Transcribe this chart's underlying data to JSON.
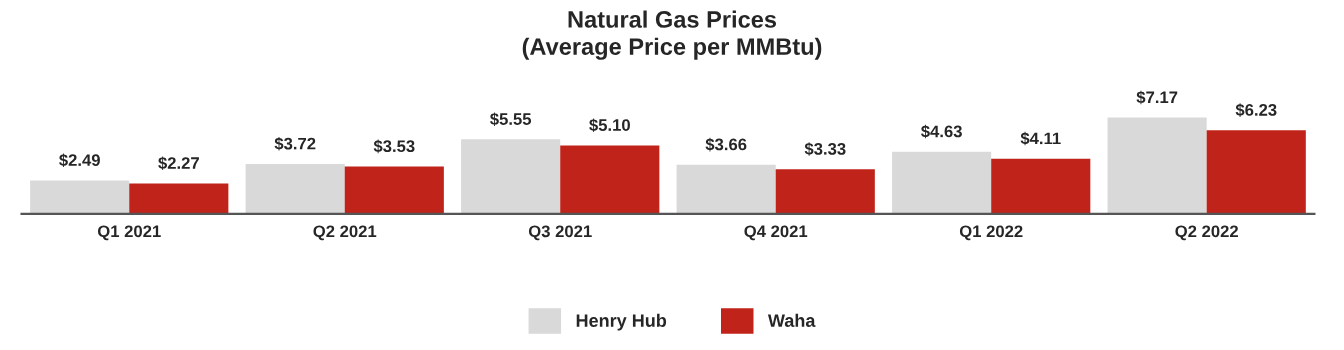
{
  "chart_data": {
    "type": "bar",
    "title": "Natural Gas Prices\n(Average Price per MMBtu)",
    "categories": [
      "Q1 2021",
      "Q2 2021",
      "Q3 2021",
      "Q4 2021",
      "Q1 2022",
      "Q2 2022"
    ],
    "series": [
      {
        "name": "Henry Hub",
        "color": "#d9d9d9",
        "values": [
          2.49,
          3.72,
          5.55,
          3.66,
          4.63,
          7.17
        ],
        "value_labels": [
          "$2.49",
          "$3.72",
          "$5.55",
          "$3.66",
          "$4.63",
          "$7.17"
        ]
      },
      {
        "name": "Waha",
        "color": "#c0231a",
        "values": [
          2.27,
          3.53,
          5.1,
          3.33,
          4.11,
          6.23
        ],
        "value_labels": [
          "$2.27",
          "$3.53",
          "$5.10",
          "$3.33",
          "$4.11",
          "$6.23"
        ]
      }
    ],
    "grid": false,
    "legend": "bottom"
  }
}
